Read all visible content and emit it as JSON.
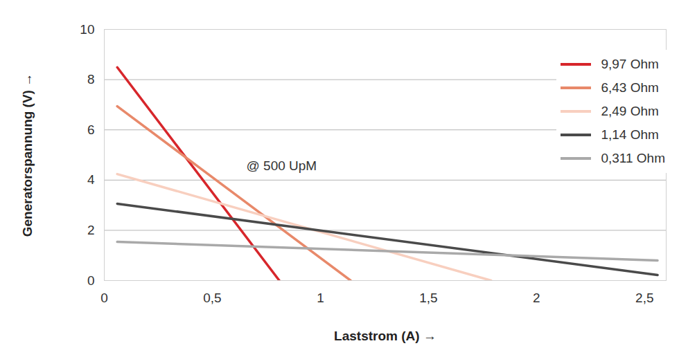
{
  "chart_data": {
    "type": "line",
    "annotation": "@ 500 UpM",
    "x_label": "Laststrom (A)",
    "y_label": "Generatorspannung (V)",
    "series": [
      {
        "name": "9,97 Ohm",
        "color": "#d7262b",
        "x": [
          0.06,
          0.81
        ],
        "values": [
          8.49,
          0
        ]
      },
      {
        "name": "6,43 Ohm",
        "color": "#e8896a",
        "x": [
          0.06,
          1.14
        ],
        "values": [
          6.94,
          0
        ]
      },
      {
        "name": "2,49 Ohm",
        "color": "#f8cfbf",
        "x": [
          0.06,
          1.79
        ],
        "values": [
          4.24,
          0
        ]
      },
      {
        "name": "1,14 Ohm",
        "color": "#4a4a4a",
        "x": [
          0.06,
          2.56
        ],
        "values": [
          3.06,
          0.22
        ]
      },
      {
        "name": "0,311 Ohm",
        "color": "#a9a9a9",
        "x": [
          0.06,
          2.56
        ],
        "values": [
          1.54,
          0.8
        ]
      }
    ],
    "xlim": [
      0,
      2.6
    ],
    "xticks": [
      {
        "value": 0,
        "label": "0"
      },
      {
        "value": 0.5,
        "label": "0,5"
      },
      {
        "value": 1,
        "label": "1"
      },
      {
        "value": 1.5,
        "label": "1,5"
      },
      {
        "value": 2,
        "label": "2"
      },
      {
        "value": 2.5,
        "label": "2,5"
      }
    ],
    "ylim": [
      0,
      10
    ],
    "yticks": [
      0,
      2,
      4,
      6,
      8,
      10
    ],
    "grid": true,
    "legend": "top-right"
  }
}
